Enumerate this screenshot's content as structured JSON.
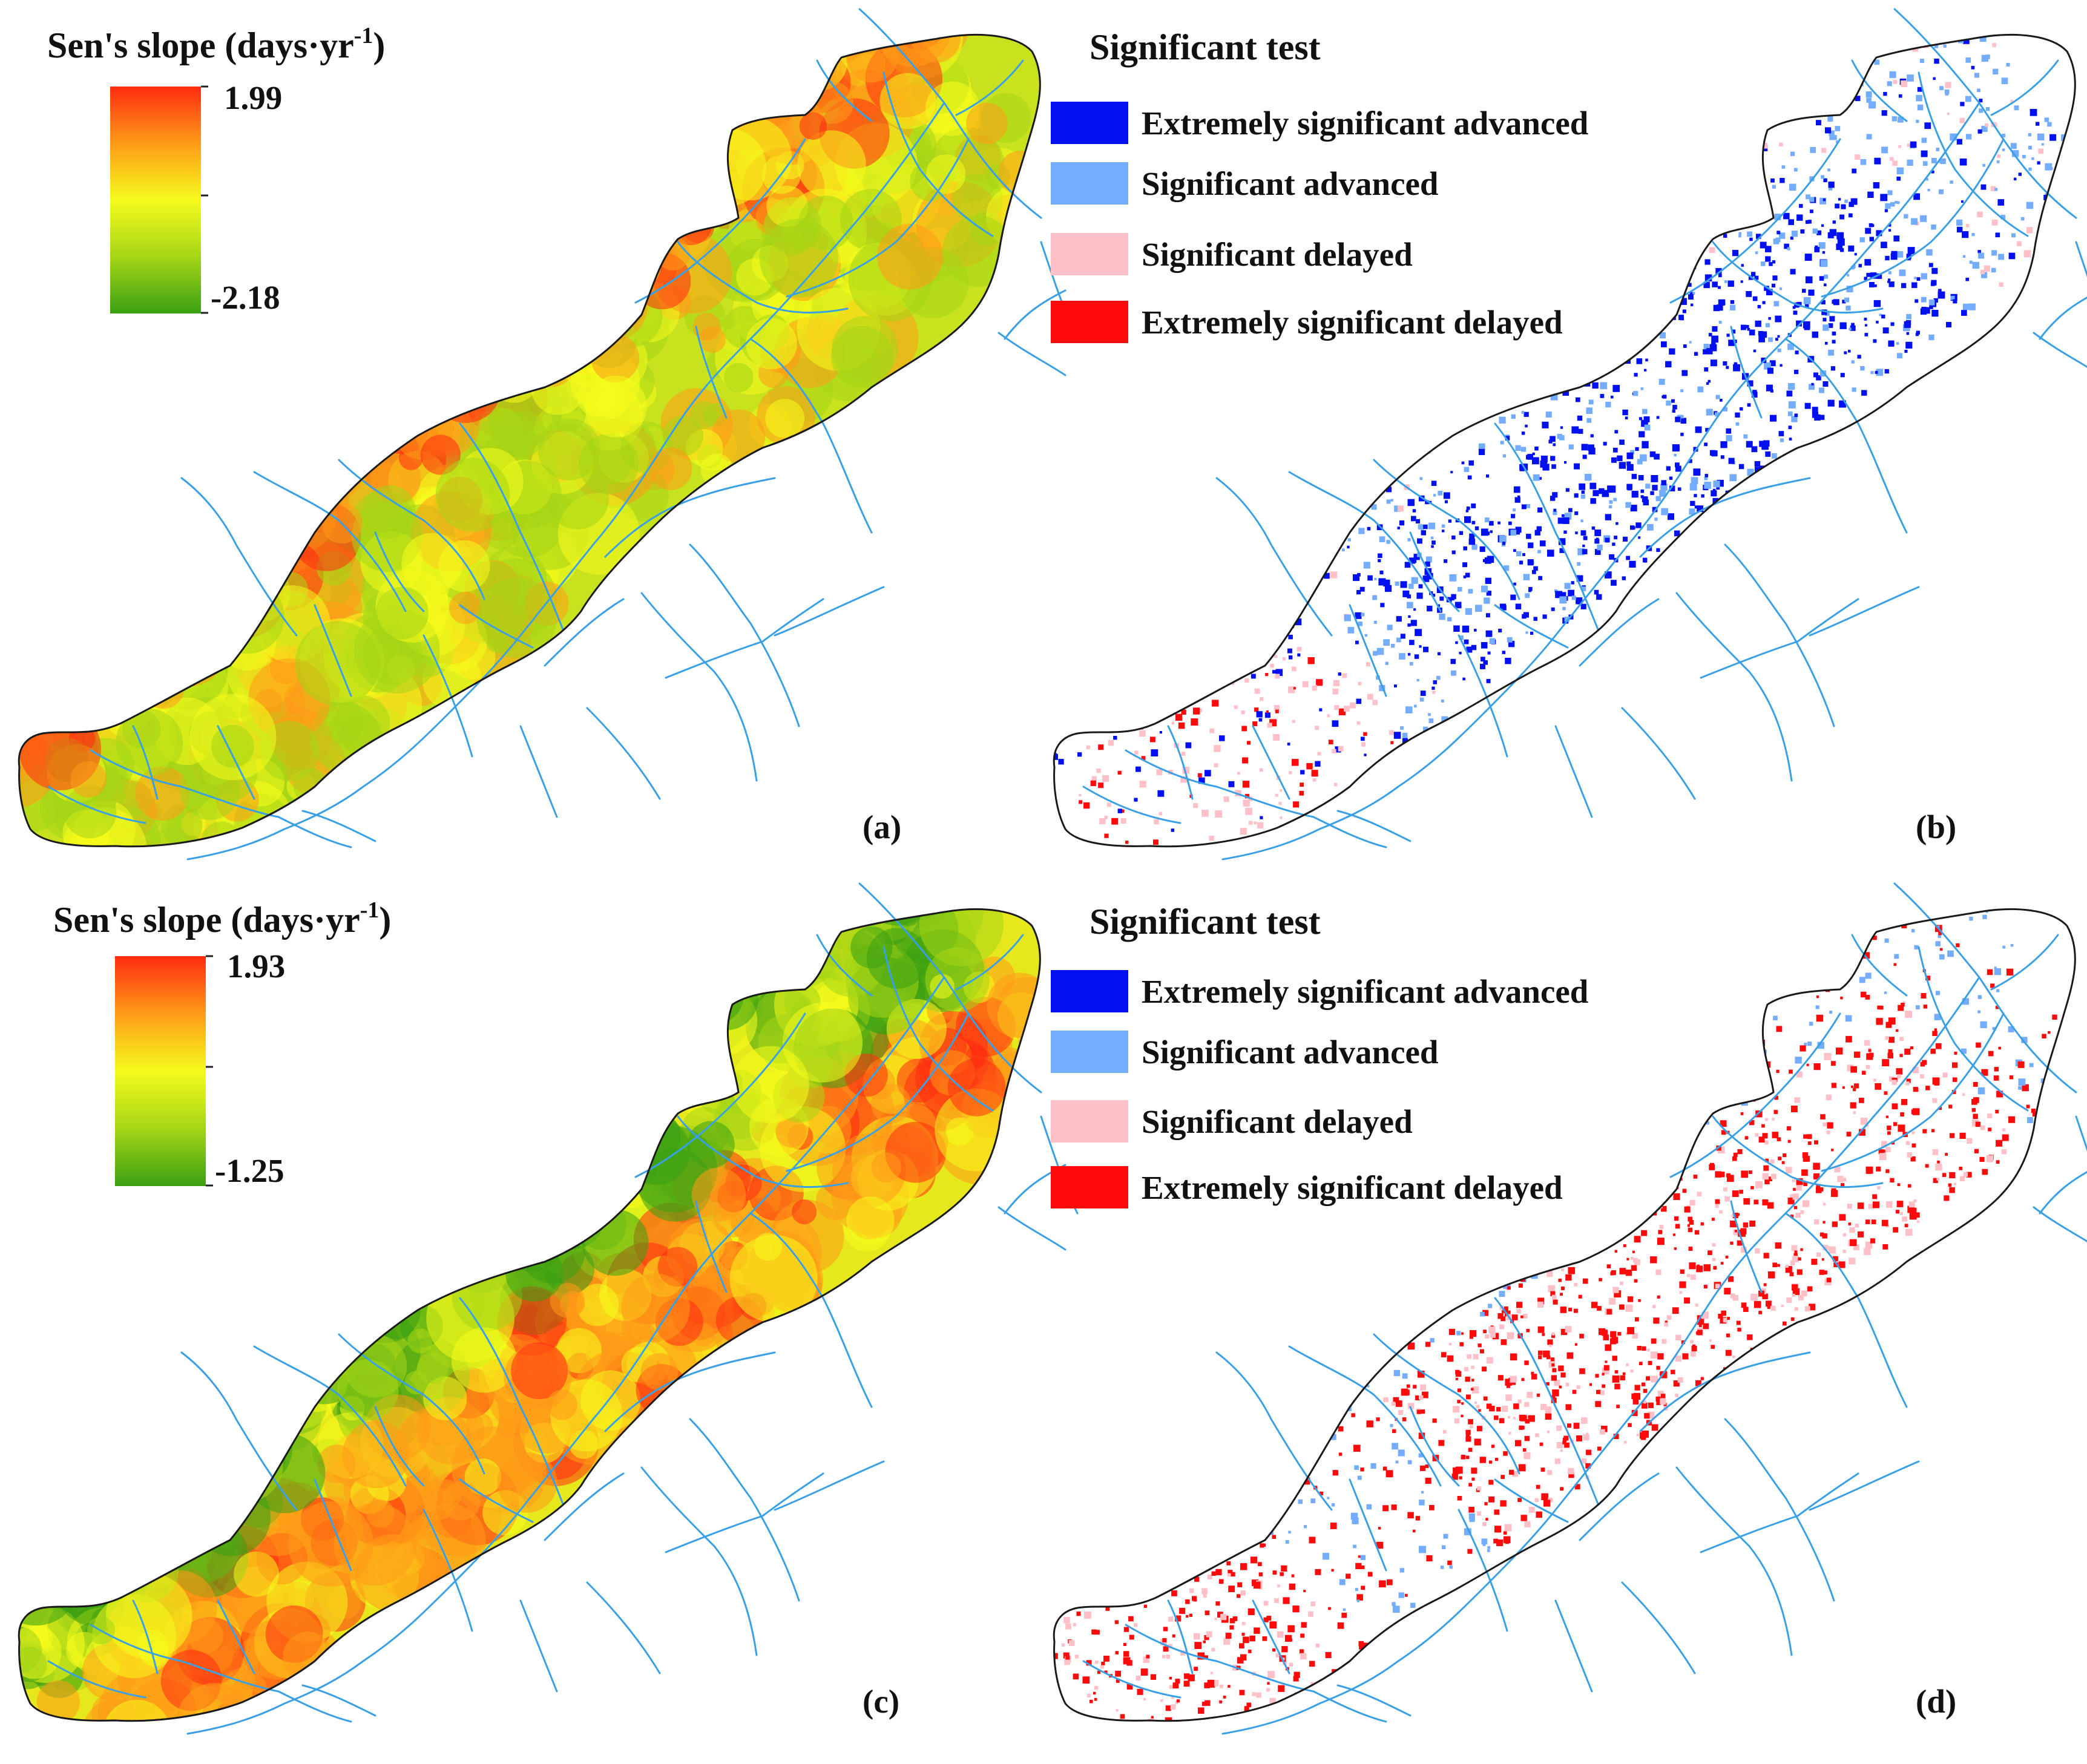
{
  "panels": [
    {
      "id": "a",
      "label": "(a)",
      "type": "slope",
      "legend": {
        "title": "Sen's slope (days·yr",
        "title_sup": "-1",
        "title_close": ")",
        "max": "1.99",
        "min": "-2.18",
        "colors": [
          "#ff2b10",
          "#ff9b18",
          "#f5fb1c",
          "#a5d616",
          "#3aa012"
        ]
      }
    },
    {
      "id": "b",
      "label": "(b)",
      "type": "significance",
      "legend": {
        "title": "Significant test",
        "items": [
          {
            "label": "Extremely significant  advanced",
            "color": "#0010f0"
          },
          {
            "label": "Significant  advanced",
            "color": "#74adff"
          },
          {
            "label": "Significant  delayed",
            "color": "#ffc0c8"
          },
          {
            "label": "Extremely significant  delayed",
            "color": "#ff0a0a"
          }
        ]
      }
    },
    {
      "id": "c",
      "label": "(c)",
      "type": "slope",
      "legend": {
        "title": "Sen's slope (days·yr",
        "title_sup": "-1",
        "title_close": ")",
        "max": "1.93",
        "min": "-1.25",
        "colors": [
          "#ff2b10",
          "#ff9b18",
          "#f5fb1c",
          "#a5d616",
          "#3aa012"
        ]
      }
    },
    {
      "id": "d",
      "label": "(d)",
      "type": "significance",
      "legend": {
        "title": "Significant test",
        "items": [
          {
            "label": "Extremely significant  advanced",
            "color": "#0010f0"
          },
          {
            "label": "Significant  advanced",
            "color": "#74adff"
          },
          {
            "label": "Significant  delayed",
            "color": "#ffc0c8"
          },
          {
            "label": "Extremely significant  delayed",
            "color": "#ff0a0a"
          }
        ]
      }
    }
  ],
  "colors": {
    "river": "#3aa0e6",
    "boundary": "#1a1a1a"
  }
}
